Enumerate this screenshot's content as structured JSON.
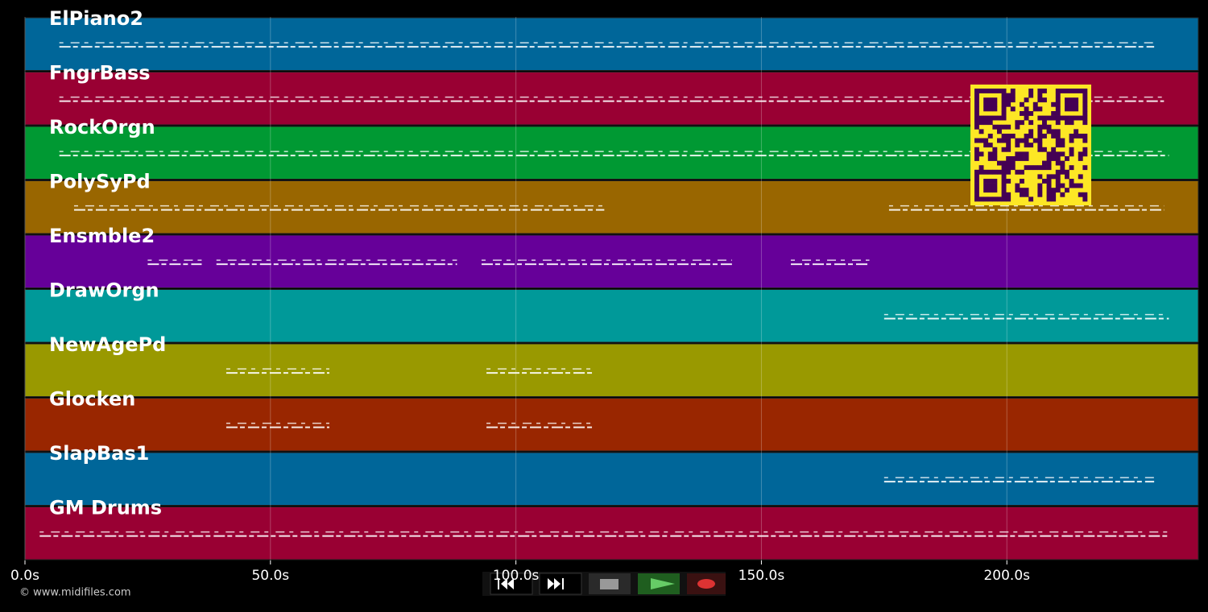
{
  "timeline": {
    "xlim": [
      0,
      239
    ],
    "xticks": [
      {
        "value": 0,
        "label": "0.0s"
      },
      {
        "value": 50,
        "label": "50.0s"
      },
      {
        "value": 100,
        "label": "100.0s"
      },
      {
        "value": 150,
        "label": "150.0s"
      },
      {
        "value": 200,
        "label": "200.0s"
      }
    ],
    "tracks": [
      {
        "name": "ElPiano2",
        "color": "#006699",
        "notes": [
          [
            7,
            230
          ]
        ]
      },
      {
        "name": "FngrBass",
        "color": "#990033",
        "notes": [
          [
            7,
            232
          ]
        ]
      },
      {
        "name": "RockOrgn",
        "color": "#009933",
        "notes": [
          [
            7,
            233
          ]
        ]
      },
      {
        "name": "PolySyPd",
        "color": "#996600",
        "notes": [
          [
            10,
            118
          ],
          [
            176,
            232
          ]
        ]
      },
      {
        "name": "Ensmble2",
        "color": "#660099",
        "notes": [
          [
            25,
            36
          ],
          [
            39,
            88
          ],
          [
            93,
            144
          ],
          [
            156,
            172
          ]
        ]
      },
      {
        "name": "DrawOrgn",
        "color": "#009999",
        "notes": [
          [
            175,
            233
          ]
        ]
      },
      {
        "name": "NewAgePd",
        "color": "#999900",
        "notes": [
          [
            41,
            62
          ],
          [
            94,
            116
          ]
        ]
      },
      {
        "name": "Glocken",
        "color": "#992600",
        "notes": [
          [
            41,
            62
          ],
          [
            94,
            116
          ]
        ]
      },
      {
        "name": "SlapBas1",
        "color": "#006699",
        "notes": [
          [
            175,
            230
          ]
        ]
      },
      {
        "name": "GM Drums",
        "color": "#990033",
        "notes": [
          [
            3,
            233
          ]
        ]
      }
    ]
  },
  "footer": {
    "credit": "© www.midifiles.com"
  }
}
